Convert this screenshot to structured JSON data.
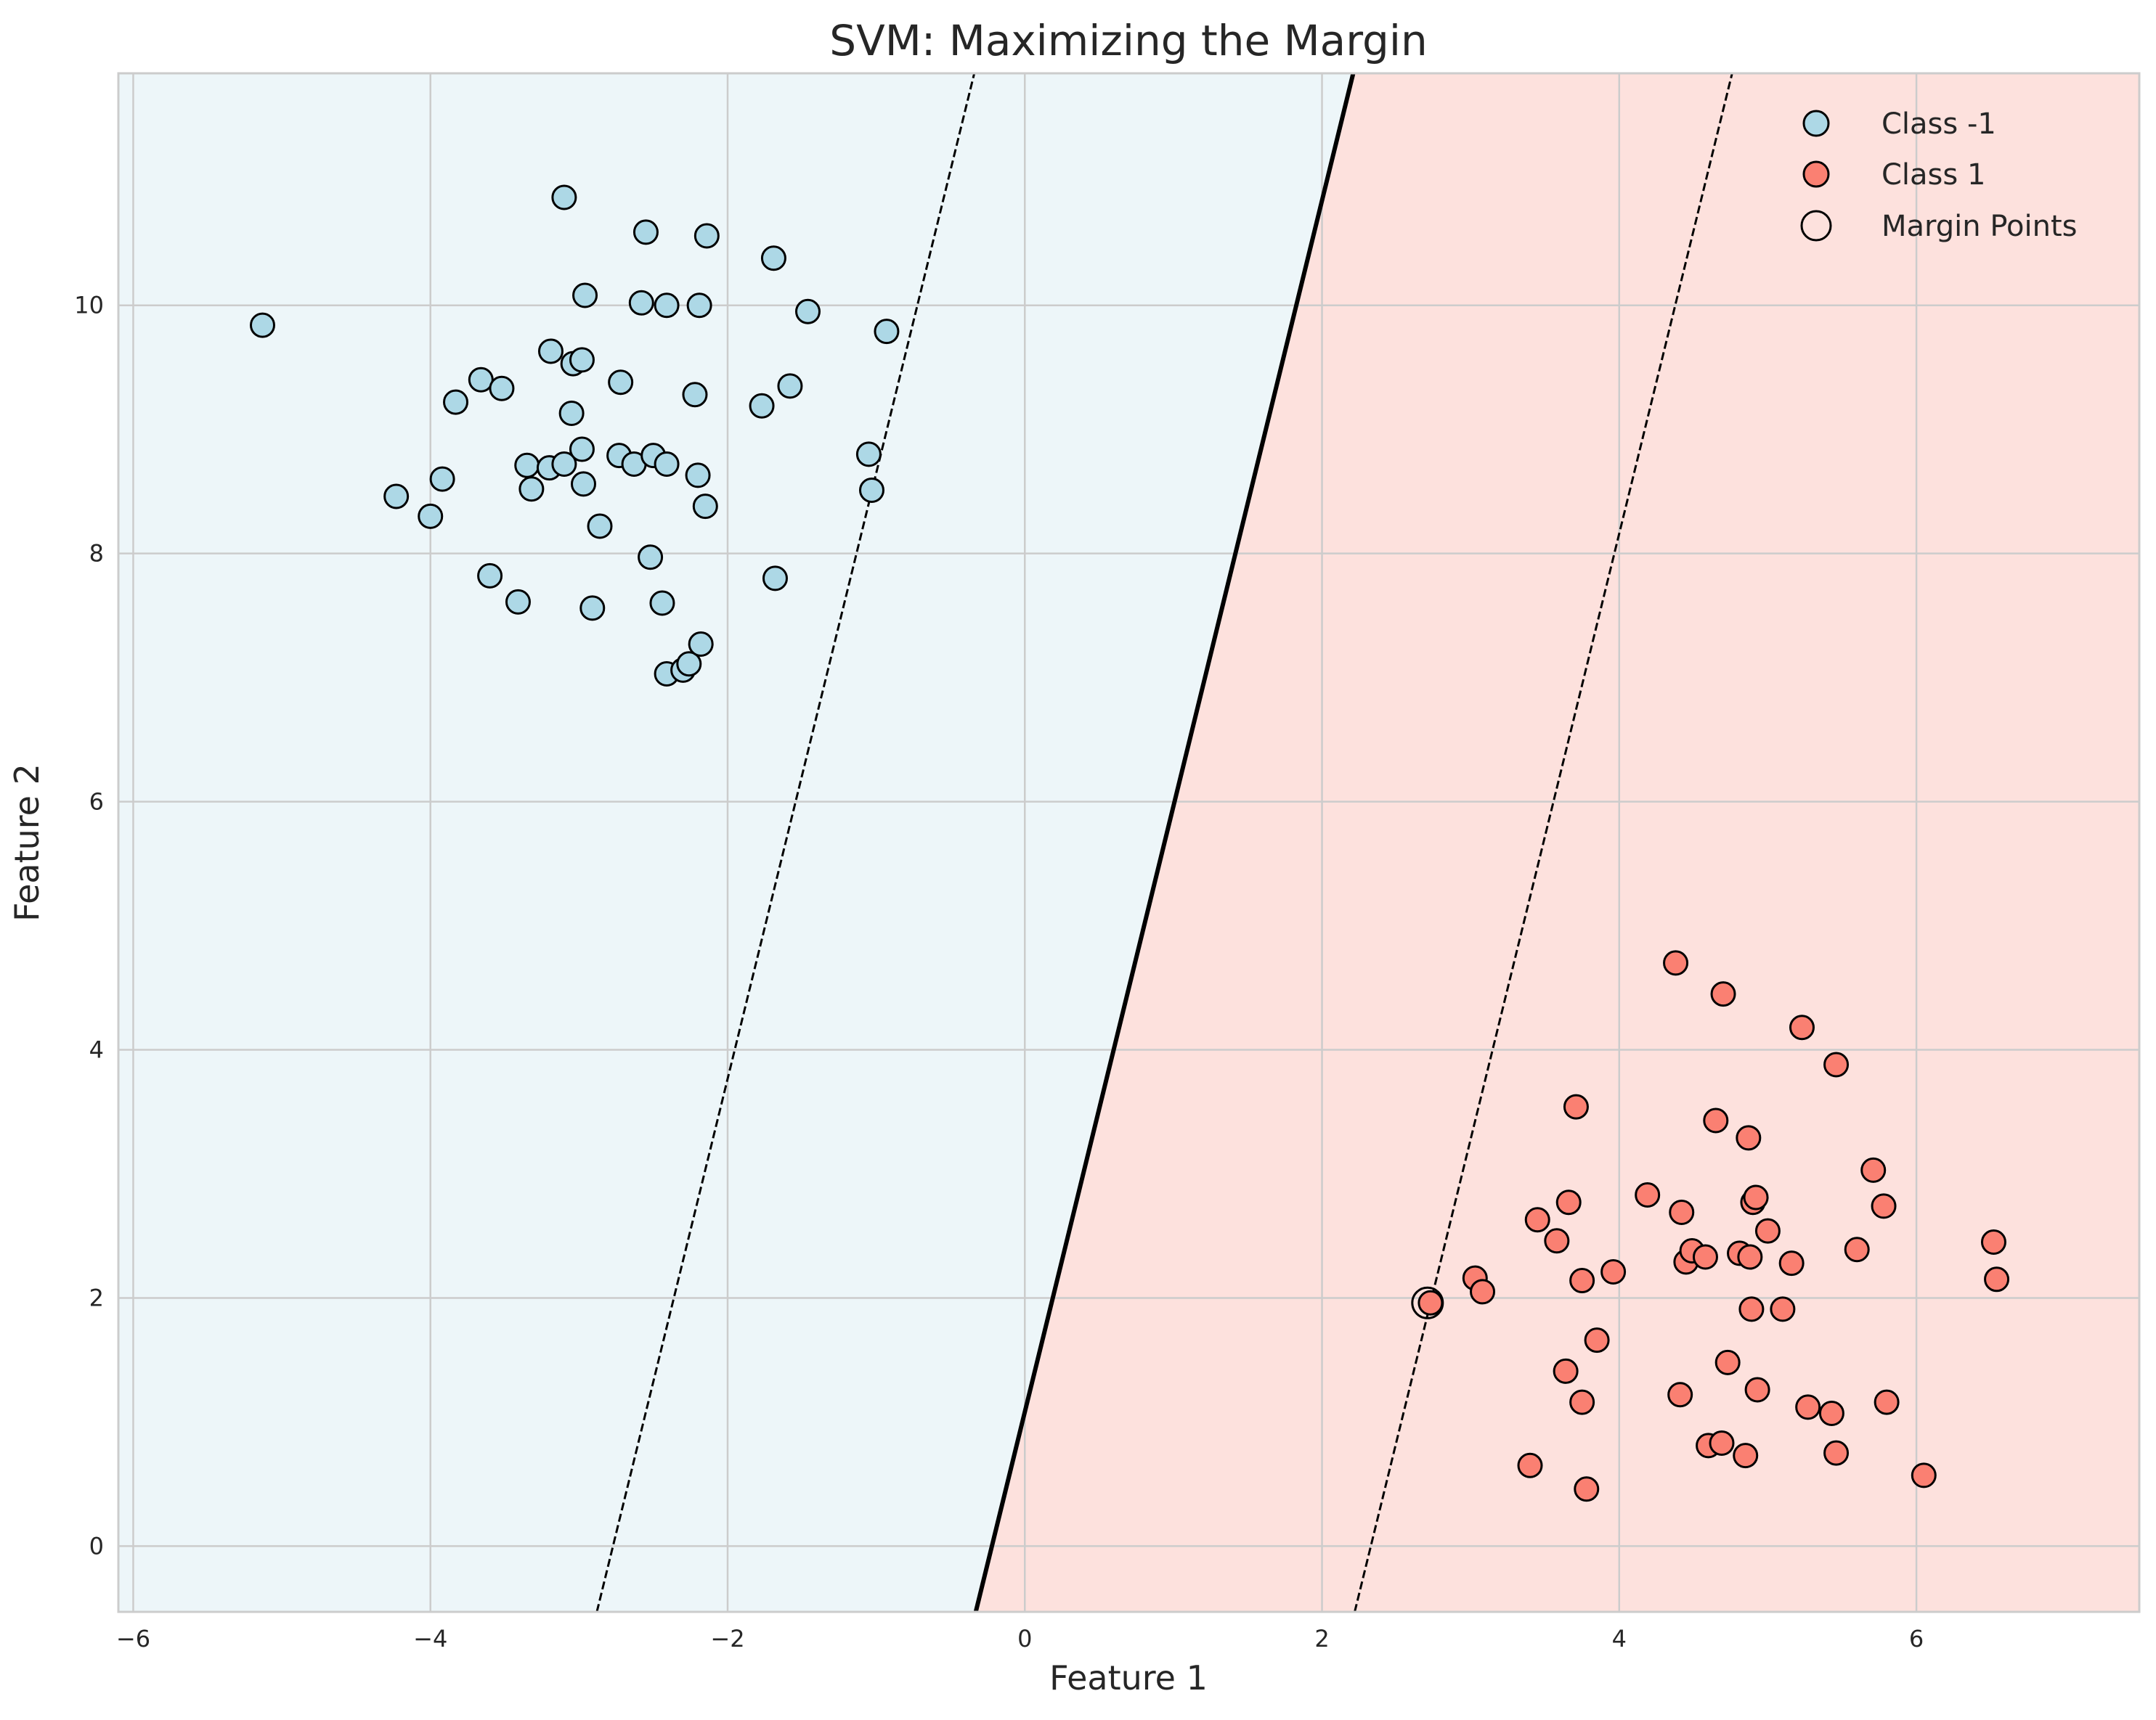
{
  "chart_data": {
    "type": "scatter",
    "title": "SVM: Maximizing the Margin",
    "xlabel": "Feature 1",
    "ylabel": "Feature 2",
    "xlim": [
      -6.1,
      7.5
    ],
    "ylim": [
      -0.53,
      11.87
    ],
    "xticks": [
      -6,
      -4,
      -2,
      0,
      2,
      4,
      6
    ],
    "yticks": [
      0,
      2,
      4,
      6,
      8,
      10
    ],
    "xtick_labels": [
      "−6",
      "−4",
      "−2",
      "0",
      "2",
      "4",
      "6"
    ],
    "ytick_labels": [
      "0",
      "2",
      "4",
      "6",
      "8",
      "10"
    ],
    "grid": true,
    "legend_position": "top-right",
    "regions": [
      {
        "class": "-1",
        "side": "left",
        "color": "#edf6f9"
      },
      {
        "class": "1",
        "side": "right",
        "color": "#fde1dd"
      }
    ],
    "decision_boundary": {
      "x1": -0.33,
      "y1": -0.53,
      "x2": 2.21,
      "y2": 11.87,
      "style": "solid",
      "color": "#000000"
    },
    "margins": [
      {
        "x1": -2.88,
        "y1": -0.53,
        "x2": -0.34,
        "y2": 11.87,
        "style": "dashed",
        "color": "#000000"
      },
      {
        "x1": 2.22,
        "y1": -0.53,
        "x2": 4.76,
        "y2": 11.87,
        "style": "dashed",
        "color": "#000000"
      }
    ],
    "series": [
      {
        "name": "Class -1",
        "color": "#add8e6",
        "points": [
          [
            -5.13,
            9.84
          ],
          [
            -4.23,
            8.46
          ],
          [
            -4.0,
            8.3
          ],
          [
            -3.92,
            8.6
          ],
          [
            -3.83,
            9.22
          ],
          [
            -3.66,
            9.4
          ],
          [
            -3.6,
            7.82
          ],
          [
            -3.52,
            9.33
          ],
          [
            -3.41,
            7.61
          ],
          [
            -3.35,
            8.71
          ],
          [
            -3.32,
            8.52
          ],
          [
            -3.2,
            8.69
          ],
          [
            -3.19,
            9.63
          ],
          [
            -3.1,
            8.72
          ],
          [
            -3.1,
            10.87
          ],
          [
            -3.05,
            9.13
          ],
          [
            -3.04,
            9.53
          ],
          [
            -2.98,
            9.56
          ],
          [
            -2.98,
            8.84
          ],
          [
            -2.97,
            8.56
          ],
          [
            -2.96,
            10.08
          ],
          [
            -2.91,
            7.56
          ],
          [
            -2.86,
            8.22
          ],
          [
            -2.73,
            8.79
          ],
          [
            -2.72,
            9.38
          ],
          [
            -2.63,
            8.72
          ],
          [
            -2.58,
            10.02
          ],
          [
            -2.55,
            10.59
          ],
          [
            -2.52,
            7.97
          ],
          [
            -2.5,
            8.79
          ],
          [
            -2.44,
            7.6
          ],
          [
            -2.41,
            8.72
          ],
          [
            -2.41,
            10.0
          ],
          [
            -2.41,
            7.03
          ],
          [
            -2.3,
            7.06
          ],
          [
            -2.26,
            7.11
          ],
          [
            -2.22,
            9.28
          ],
          [
            -2.2,
            8.63
          ],
          [
            -2.19,
            10.0
          ],
          [
            -2.18,
            7.27
          ],
          [
            -2.15,
            8.38
          ],
          [
            -2.14,
            10.56
          ],
          [
            -1.77,
            9.19
          ],
          [
            -1.69,
            10.38
          ],
          [
            -1.68,
            7.8
          ],
          [
            -1.58,
            9.35
          ],
          [
            -1.46,
            9.95
          ],
          [
            -1.05,
            8.8
          ],
          [
            -1.03,
            8.51
          ],
          [
            -0.93,
            9.79
          ]
        ]
      },
      {
        "name": "Class 1",
        "color": "#fa8072",
        "points": [
          [
            2.73,
            1.96
          ],
          [
            3.03,
            2.16
          ],
          [
            3.08,
            2.05
          ],
          [
            3.4,
            0.65
          ],
          [
            3.45,
            2.63
          ],
          [
            3.58,
            2.46
          ],
          [
            3.64,
            1.41
          ],
          [
            3.66,
            2.77
          ],
          [
            3.71,
            3.54
          ],
          [
            3.75,
            2.14
          ],
          [
            3.75,
            1.16
          ],
          [
            3.78,
            0.46
          ],
          [
            3.85,
            1.66
          ],
          [
            3.96,
            2.21
          ],
          [
            4.19,
            2.83
          ],
          [
            4.38,
            4.7
          ],
          [
            4.41,
            1.22
          ],
          [
            4.42,
            2.69
          ],
          [
            4.45,
            2.29
          ],
          [
            4.49,
            2.38
          ],
          [
            4.58,
            2.33
          ],
          [
            4.6,
            0.81
          ],
          [
            4.65,
            3.43
          ],
          [
            4.69,
            0.83
          ],
          [
            4.7,
            4.45
          ],
          [
            4.73,
            1.48
          ],
          [
            4.81,
            2.36
          ],
          [
            4.85,
            0.73
          ],
          [
            4.87,
            3.29
          ],
          [
            4.88,
            2.33
          ],
          [
            4.89,
            1.91
          ],
          [
            4.9,
            2.77
          ],
          [
            4.92,
            2.81
          ],
          [
            4.93,
            1.26
          ],
          [
            5.0,
            2.54
          ],
          [
            5.1,
            1.91
          ],
          [
            5.16,
            2.28
          ],
          [
            5.23,
            4.18
          ],
          [
            5.27,
            1.12
          ],
          [
            5.43,
            1.07
          ],
          [
            5.46,
            3.88
          ],
          [
            5.46,
            0.75
          ],
          [
            5.6,
            2.39
          ],
          [
            5.71,
            3.03
          ],
          [
            5.78,
            2.74
          ],
          [
            5.8,
            1.16
          ],
          [
            6.05,
            0.57
          ],
          [
            6.52,
            2.45
          ],
          [
            6.54,
            2.15
          ]
        ]
      }
    ],
    "margin_points": [
      [
        2.71,
        1.96
      ]
    ],
    "legend": [
      {
        "label": "Class -1",
        "marker": "filled",
        "color": "#add8e6"
      },
      {
        "label": "Class 1",
        "marker": "filled",
        "color": "#fa8072"
      },
      {
        "label": "Margin Points",
        "marker": "hollow",
        "color": "#000000"
      }
    ]
  }
}
